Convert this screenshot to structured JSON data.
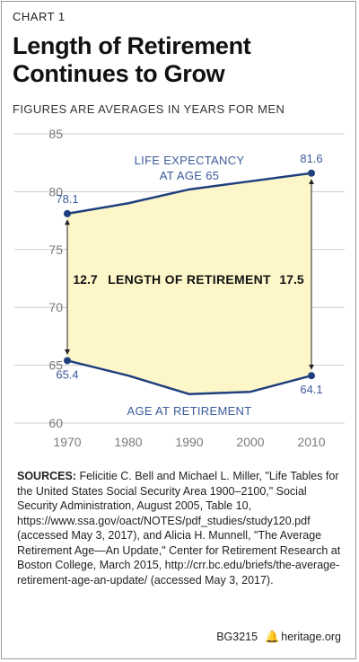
{
  "kicker": "CHART 1",
  "title": "Length of Retirement Continues to Grow",
  "subtitle": "FIGURES ARE AVERAGES IN YEARS FOR MEN",
  "colors": {
    "line": "#1f3f7d",
    "fill": "#fcf6c9",
    "label_blue": "#3b5a9b",
    "grid": "#cccccc",
    "axis_text": "#7a7a7a"
  },
  "chart_data": {
    "type": "area",
    "x": [
      1970,
      1980,
      1990,
      2000,
      2010
    ],
    "xlim": [
      1970,
      2010
    ],
    "ylim": [
      60,
      85
    ],
    "yticks": [
      60,
      65,
      70,
      75,
      80,
      85
    ],
    "grid": true,
    "series": [
      {
        "name": "LIFE EXPECTANCY AT AGE 65",
        "values": [
          78.1,
          79.0,
          80.2,
          80.9,
          81.6
        ]
      },
      {
        "name": "AGE AT RETIREMENT",
        "values": [
          65.4,
          64.1,
          62.5,
          62.7,
          64.1
        ]
      }
    ],
    "point_labels": [
      {
        "series": 0,
        "index": 0,
        "text": "78.1"
      },
      {
        "series": 0,
        "index": 4,
        "text": "81.6"
      },
      {
        "series": 1,
        "index": 0,
        "text": "65.4"
      },
      {
        "series": 1,
        "index": 4,
        "text": "64.1"
      }
    ],
    "series_labels": [
      "LIFE EXPECTANCY",
      "AT AGE 65",
      "AGE AT RETIREMENT"
    ],
    "area_label": "LENGTH OF RETIREMENT",
    "gap_labels": [
      "12.7",
      "17.5"
    ]
  },
  "sources": {
    "label": "SOURCES:",
    "text": "Felicitie C. Bell and Michael L. Miller, \"Life Tables for the United States Social Security Area 1900–2100,\" Social Security Administration, August 2005, Table 10, https://www.ssa.gov/oact/NOTES/pdf_studies/study120.pdf (accessed May 3, 2017), and Alicia H. Munnell, \"The Average Retirement Age—An Update,\" Center for Retirement Research at Boston College, March 2015, http://crr.bc.edu/briefs/the-average-retirement-age-an-update/ (accessed May 3, 2017)."
  },
  "footer": {
    "code": "BG3215",
    "bell_icon": "liberty-bell-icon",
    "site": "heritage.org"
  }
}
